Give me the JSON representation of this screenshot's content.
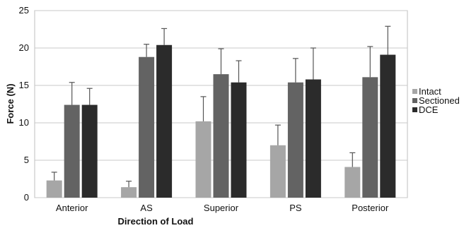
{
  "chart_data": {
    "type": "bar",
    "title": "",
    "xlabel": "Direction of Load",
    "ylabel": "Force (N)",
    "ylim": [
      0,
      25
    ],
    "yticks": [
      0,
      5,
      10,
      15,
      20,
      25
    ],
    "grid": true,
    "legend_position": "right",
    "categories": [
      "Anterior",
      "AS",
      "Superior",
      "PS",
      "Posterior"
    ],
    "series": [
      {
        "name": "Intact",
        "color": "#a6a6a6",
        "values": [
          2.3,
          1.4,
          10.2,
          7.0,
          4.1
        ],
        "errors": [
          1.1,
          0.8,
          3.3,
          2.7,
          1.9
        ]
      },
      {
        "name": "Sectioned",
        "color": "#636363",
        "values": [
          12.4,
          18.8,
          16.5,
          15.4,
          16.1
        ],
        "errors": [
          3.0,
          1.7,
          3.4,
          3.2,
          4.1
        ]
      },
      {
        "name": "DCE",
        "color": "#2b2b2b",
        "values": [
          12.4,
          20.4,
          15.4,
          15.8,
          19.1
        ],
        "errors": [
          2.2,
          2.2,
          2.9,
          4.2,
          3.8
        ]
      }
    ]
  }
}
